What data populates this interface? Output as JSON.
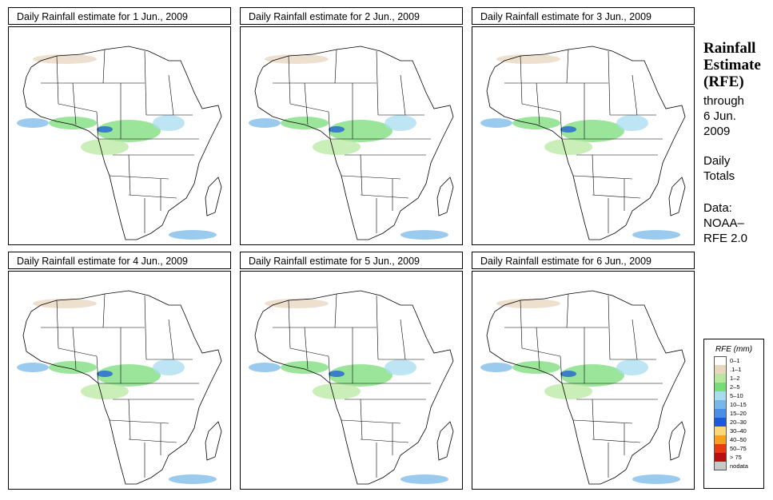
{
  "panels": [
    {
      "title": "Daily Rainfall estimate for  1 Jun., 2009"
    },
    {
      "title": "Daily Rainfall estimate for  2 Jun., 2009"
    },
    {
      "title": "Daily Rainfall estimate for  3 Jun., 2009"
    },
    {
      "title": "Daily Rainfall estimate for  4 Jun., 2009"
    },
    {
      "title": "Daily Rainfall estimate for  5 Jun., 2009"
    },
    {
      "title": "Daily Rainfall estimate for  6 Jun., 2009"
    }
  ],
  "sidebar": {
    "title_lines": [
      "Rainfall",
      "Estimate",
      "(RFE)"
    ],
    "through": "through",
    "date_line1": "6 Jun.",
    "date_line2": "2009",
    "totals_line1": "Daily",
    "totals_line2": "Totals",
    "data_line1": "Data:",
    "data_line2": "NOAA–",
    "data_line3": "RFE 2.0"
  },
  "legend": {
    "title": "RFE (mm)",
    "items": [
      {
        "label": "0–1",
        "color": "#ffffff"
      },
      {
        "label": ".1–1",
        "color": "#e8d6bf"
      },
      {
        "label": "1–2",
        "color": "#b8e8a0"
      },
      {
        "label": "2–5",
        "color": "#78dc78"
      },
      {
        "label": "5–10",
        "color": "#a8dcf0"
      },
      {
        "label": "10–15",
        "color": "#78b8e8"
      },
      {
        "label": "15–20",
        "color": "#4a8ee8"
      },
      {
        "label": "20–30",
        "color": "#1a5ad8"
      },
      {
        "label": "30–40",
        "color": "#f8d878"
      },
      {
        "label": "40–50",
        "color": "#f8a020"
      },
      {
        "label": "50–75",
        "color": "#e83a10"
      },
      {
        "label": "> 75",
        "color": "#b81010"
      },
      {
        "label": "nodata",
        "color": "#c8c8c8"
      }
    ]
  }
}
